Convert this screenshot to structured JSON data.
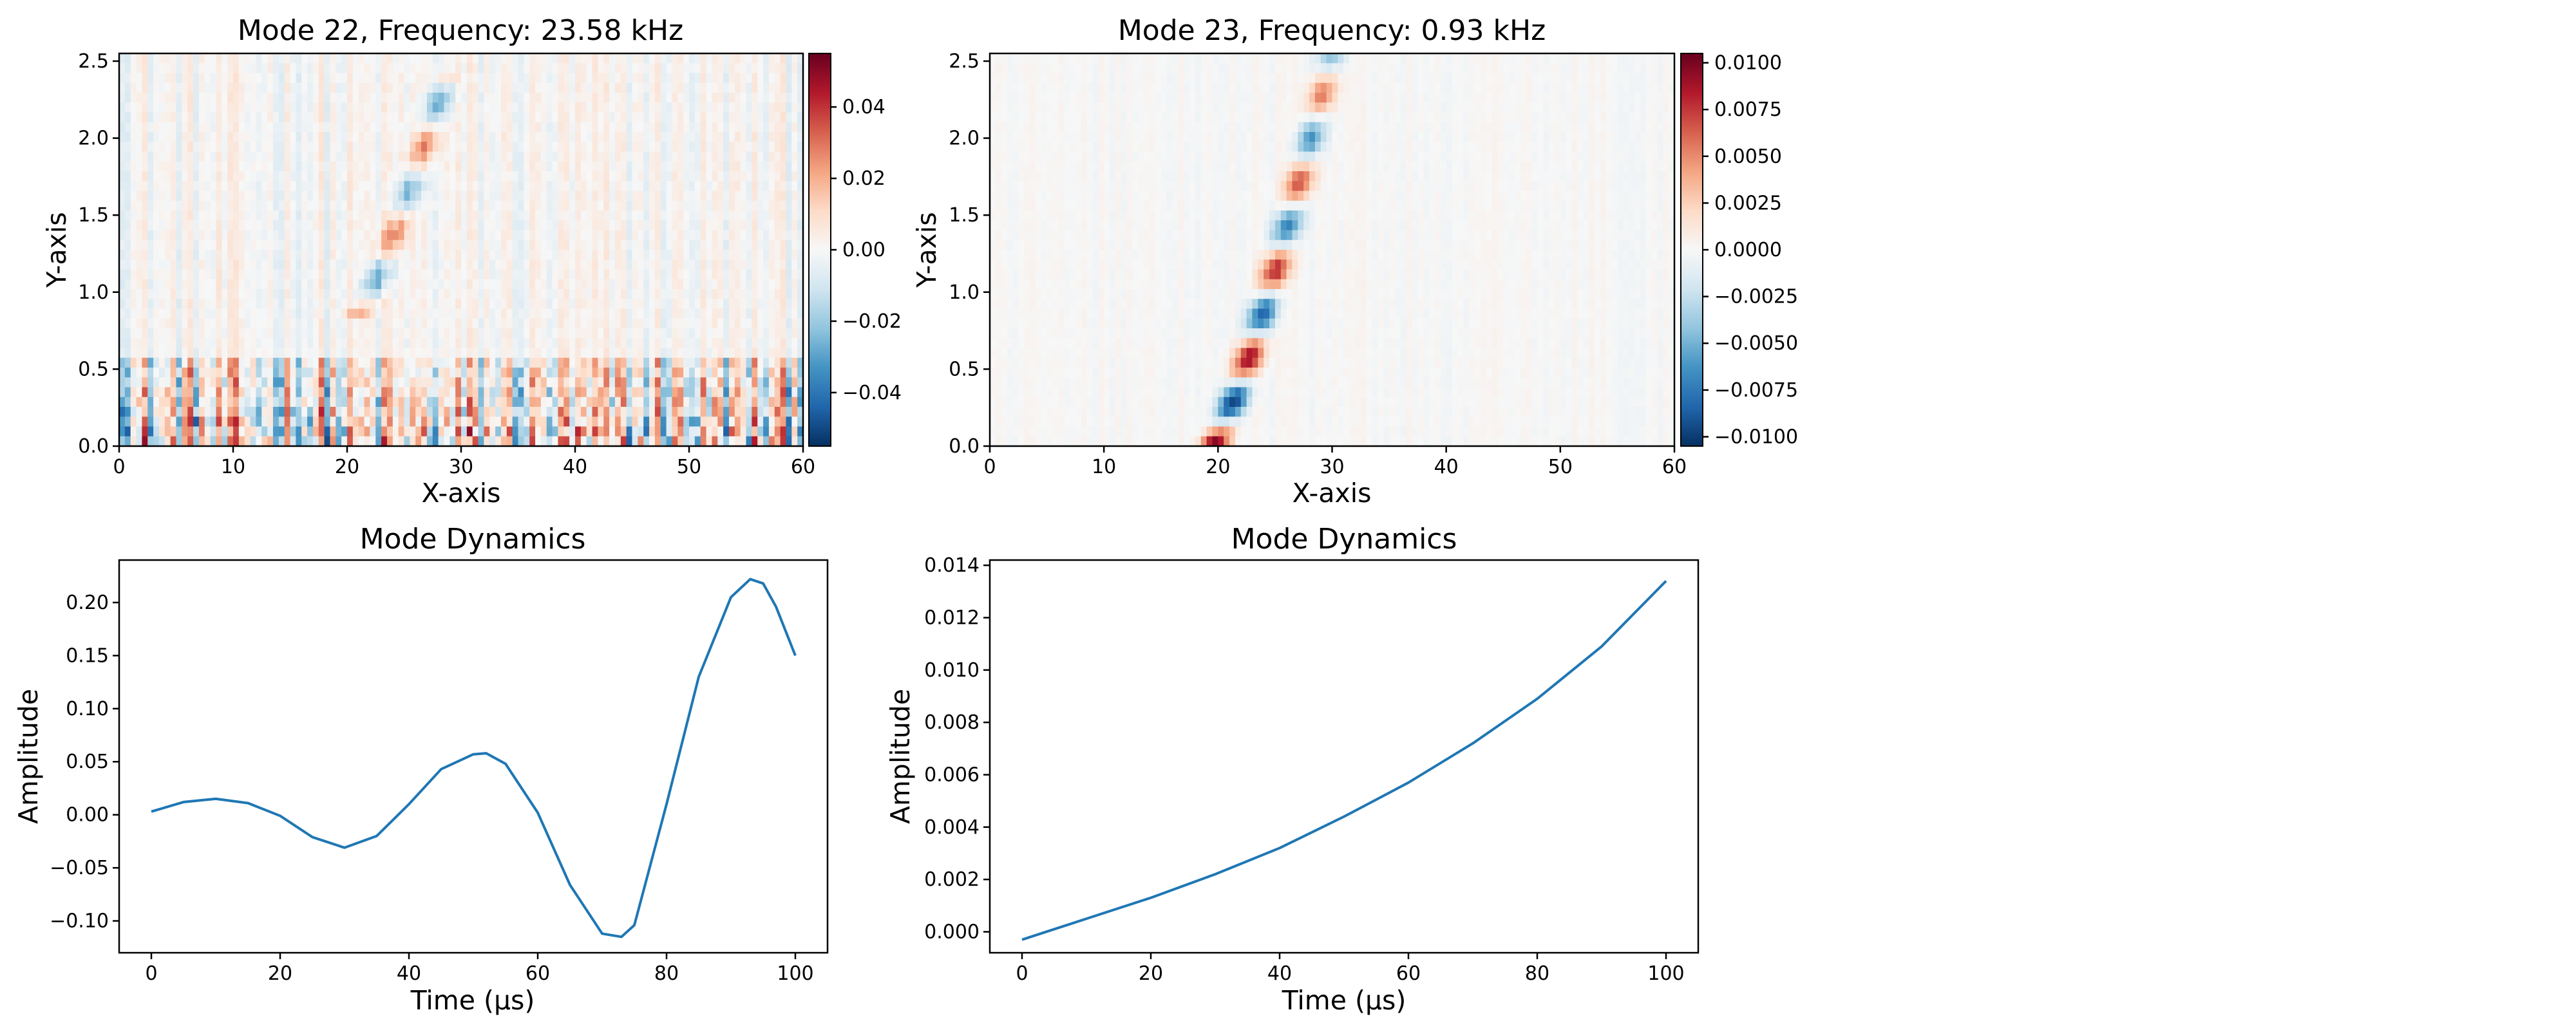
{
  "chart_data": [
    {
      "type": "heatmap",
      "title": "Mode 22, Frequency: 23.58 kHz",
      "xlabel": "X-axis",
      "ylabel": "Y-axis",
      "xlim": [
        0,
        60
      ],
      "ylim": [
        0,
        2.55
      ],
      "xticks": [
        "0",
        "10",
        "20",
        "30",
        "40",
        "50",
        "60"
      ],
      "yticks": [
        "0.0",
        "0.5",
        "1.0",
        "1.5",
        "2.0",
        "2.5"
      ],
      "colormap": "RdBu_r",
      "colorbar": {
        "min": -0.055,
        "max": 0.055,
        "ticks": [
          "−0.04",
          "−0.02",
          "0.00",
          "0.02",
          "0.04"
        ]
      },
      "features": [
        {
          "kind": "dashed-ridge",
          "x_start": 20.5,
          "y_start": 0.8,
          "x_end": 29,
          "y_end": 2.45,
          "amplitude": 0.025
        },
        {
          "kind": "noise-band",
          "y_from": 0.0,
          "y_to": 0.6,
          "amplitude": 0.05
        }
      ]
    },
    {
      "type": "heatmap",
      "title": "Mode 23, Frequency: 0.93 kHz",
      "xlabel": "X-axis",
      "ylabel": "Y-axis",
      "xlim": [
        0,
        60
      ],
      "ylim": [
        0,
        2.55
      ],
      "xticks": [
        "0",
        "10",
        "20",
        "30",
        "40",
        "50",
        "60"
      ],
      "yticks": [
        "0.0",
        "0.5",
        "1.0",
        "1.5",
        "2.0",
        "2.5"
      ],
      "colormap": "RdBu_r",
      "colorbar": {
        "min": -0.0105,
        "max": 0.0105,
        "ticks": [
          "0.0100",
          "0.0075",
          "0.0050",
          "0.0025",
          "0.0000",
          "−0.0025",
          "−0.0050",
          "−0.0075",
          "−0.0100"
        ]
      },
      "features": [
        {
          "kind": "dashed-ridge",
          "x_start": 19.5,
          "y_start": 0.0,
          "x_end": 30,
          "y_end": 2.55,
          "amplitude": 0.0105
        }
      ]
    },
    {
      "type": "line",
      "title": "Mode Dynamics",
      "xlabel": "Time (μs)",
      "ylabel": "Amplitude",
      "xlim": [
        -5,
        105
      ],
      "ylim": [
        -0.13,
        0.24
      ],
      "xticks": [
        "0",
        "20",
        "40",
        "60",
        "80",
        "100"
      ],
      "yticks": [
        "−0.10",
        "−0.05",
        "0.00",
        "0.05",
        "0.10",
        "0.15",
        "0.20"
      ],
      "color": "#1f77b4",
      "series": [
        {
          "x": [
            0,
            5,
            10,
            15,
            20,
            25,
            30,
            35,
            40,
            45,
            50,
            52,
            55,
            60,
            65,
            70,
            73,
            75,
            80,
            85,
            90,
            93,
            95,
            97,
            100
          ],
          "y": [
            0.003,
            0.012,
            0.015,
            0.011,
            -0.001,
            -0.021,
            -0.031,
            -0.02,
            0.01,
            0.043,
            0.057,
            0.058,
            0.048,
            0.002,
            -0.066,
            -0.112,
            -0.115,
            -0.104,
            0.01,
            0.13,
            0.205,
            0.222,
            0.218,
            0.196,
            0.15
          ]
        }
      ]
    },
    {
      "type": "line",
      "title": "Mode Dynamics",
      "xlabel": "Time (μs)",
      "ylabel": "Amplitude",
      "xlim": [
        -5,
        105
      ],
      "ylim": [
        -0.0008,
        0.0142
      ],
      "xticks": [
        "0",
        "20",
        "40",
        "60",
        "80",
        "100"
      ],
      "yticks": [
        "0.000",
        "0.002",
        "0.004",
        "0.006",
        "0.008",
        "0.010",
        "0.012",
        "0.014"
      ],
      "color": "#1f77b4",
      "series": [
        {
          "x": [
            0,
            10,
            20,
            30,
            40,
            50,
            60,
            70,
            80,
            90,
            100
          ],
          "y": [
            -0.0003,
            0.0005,
            0.0013,
            0.0022,
            0.0032,
            0.0044,
            0.0057,
            0.0072,
            0.0089,
            0.0109,
            0.0134
          ]
        }
      ]
    }
  ]
}
